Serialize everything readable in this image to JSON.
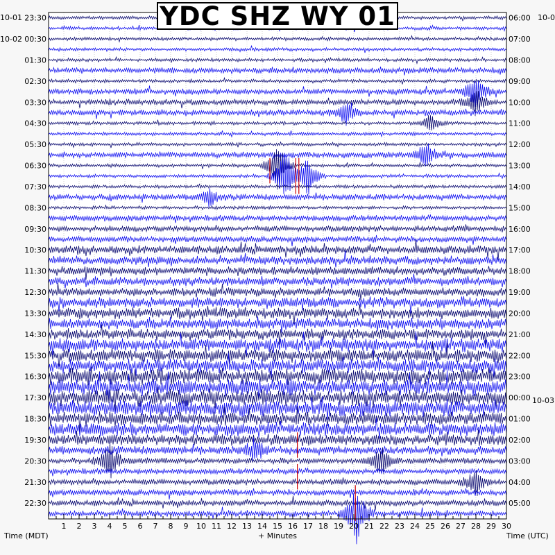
{
  "title": "YDC SHZ WY 01",
  "left_axis_label": "Time (MDT)",
  "right_axis_label": "Time (UTC)",
  "x_axis_label": "+ Minutes",
  "date_labels": {
    "left_top": "10-01",
    "left_second": "10-02",
    "right_top": "10-02",
    "right_mid": "10-03"
  },
  "colors": {
    "trace_dark": "#0a0a70",
    "trace_bright": "#1010f0",
    "pick_marker": "#cc0000",
    "grid": "#aaaaaa",
    "background": "#ffffff"
  },
  "chart_data": {
    "type": "line",
    "title": "YDC SHZ WY 01",
    "xlabel": "+ Minutes",
    "ylabel_left": "Time (MDT)",
    "ylabel_right": "Time (UTC)",
    "x_range": [
      0,
      30
    ],
    "x_ticks": [
      1,
      2,
      3,
      4,
      5,
      6,
      7,
      8,
      9,
      10,
      11,
      12,
      13,
      14,
      15,
      16,
      17,
      18,
      19,
      20,
      21,
      22,
      23,
      24,
      25,
      26,
      27,
      28,
      29,
      30
    ],
    "y_tick_labels_left": [
      "23:30",
      "00:30",
      "01:30",
      "02:30",
      "03:30",
      "04:30",
      "05:30",
      "06:30",
      "07:30",
      "08:30",
      "09:30",
      "10:30",
      "11:30",
      "12:30",
      "13:30",
      "14:30",
      "15:30",
      "16:30",
      "17:30",
      "18:30",
      "19:30",
      "20:30",
      "21:30",
      "22:30"
    ],
    "y_tick_labels_right": [
      "06:00",
      "07:00",
      "08:00",
      "09:00",
      "10:00",
      "11:00",
      "12:00",
      "13:00",
      "14:00",
      "15:00",
      "16:00",
      "17:00",
      "18:00",
      "19:00",
      "20:00",
      "21:00",
      "22:00",
      "23:00",
      "00:00",
      "01:00",
      "02:00",
      "03:00",
      "04:00",
      "05:00"
    ],
    "row_minutes": 30,
    "row_count": 48,
    "grid": true,
    "row_noise_level": [
      1,
      1,
      1,
      1,
      1,
      2,
      1,
      2,
      2,
      2,
      1,
      1,
      1,
      2,
      1,
      1,
      1,
      2,
      1,
      2,
      2,
      2,
      3,
      3,
      3,
      3,
      3,
      4,
      4,
      4,
      4,
      5,
      5,
      5,
      6,
      6,
      6,
      6,
      5,
      5,
      4,
      3,
      2,
      2,
      2,
      2,
      2,
      2
    ],
    "events": [
      {
        "row": 7,
        "minute": 28.0,
        "amplitude": 2.0
      },
      {
        "row": 8,
        "minute": 28.0,
        "amplitude": 1.5
      },
      {
        "row": 9,
        "minute": 19.5,
        "amplitude": 1.2
      },
      {
        "row": 10,
        "minute": 25.0,
        "amplitude": 1.0
      },
      {
        "row": 13,
        "minute": 24.7,
        "amplitude": 1.5
      },
      {
        "row": 14,
        "minute": 15.0,
        "amplitude": 3.0
      },
      {
        "row": 15,
        "minute": 15.5,
        "amplitude": 3.5
      },
      {
        "row": 15,
        "minute": 17.0,
        "amplitude": 2.5
      },
      {
        "row": 17,
        "minute": 10.5,
        "amplitude": 1.0
      },
      {
        "row": 41,
        "minute": 13.5,
        "amplitude": 1.2
      },
      {
        "row": 42,
        "minute": 21.8,
        "amplitude": 2.0
      },
      {
        "row": 42,
        "minute": 4.0,
        "amplitude": 2.0
      },
      {
        "row": 44,
        "minute": 28.0,
        "amplitude": 1.5
      },
      {
        "row": 47,
        "minute": 20.2,
        "amplitude": 3.5
      }
    ],
    "picks": [
      {
        "row_start": 14,
        "row_end": 15,
        "minute": 14.5
      },
      {
        "row_start": 14,
        "row_end": 16,
        "minute": 16.2
      },
      {
        "row_start": 14,
        "row_end": 16,
        "minute": 16.4
      },
      {
        "row_start": 40,
        "row_end": 41,
        "minute": 16.3
      },
      {
        "row_start": 43,
        "row_end": 44,
        "minute": 16.3
      },
      {
        "row_start": 45,
        "row_end": 47,
        "minute": 20.1
      }
    ]
  }
}
